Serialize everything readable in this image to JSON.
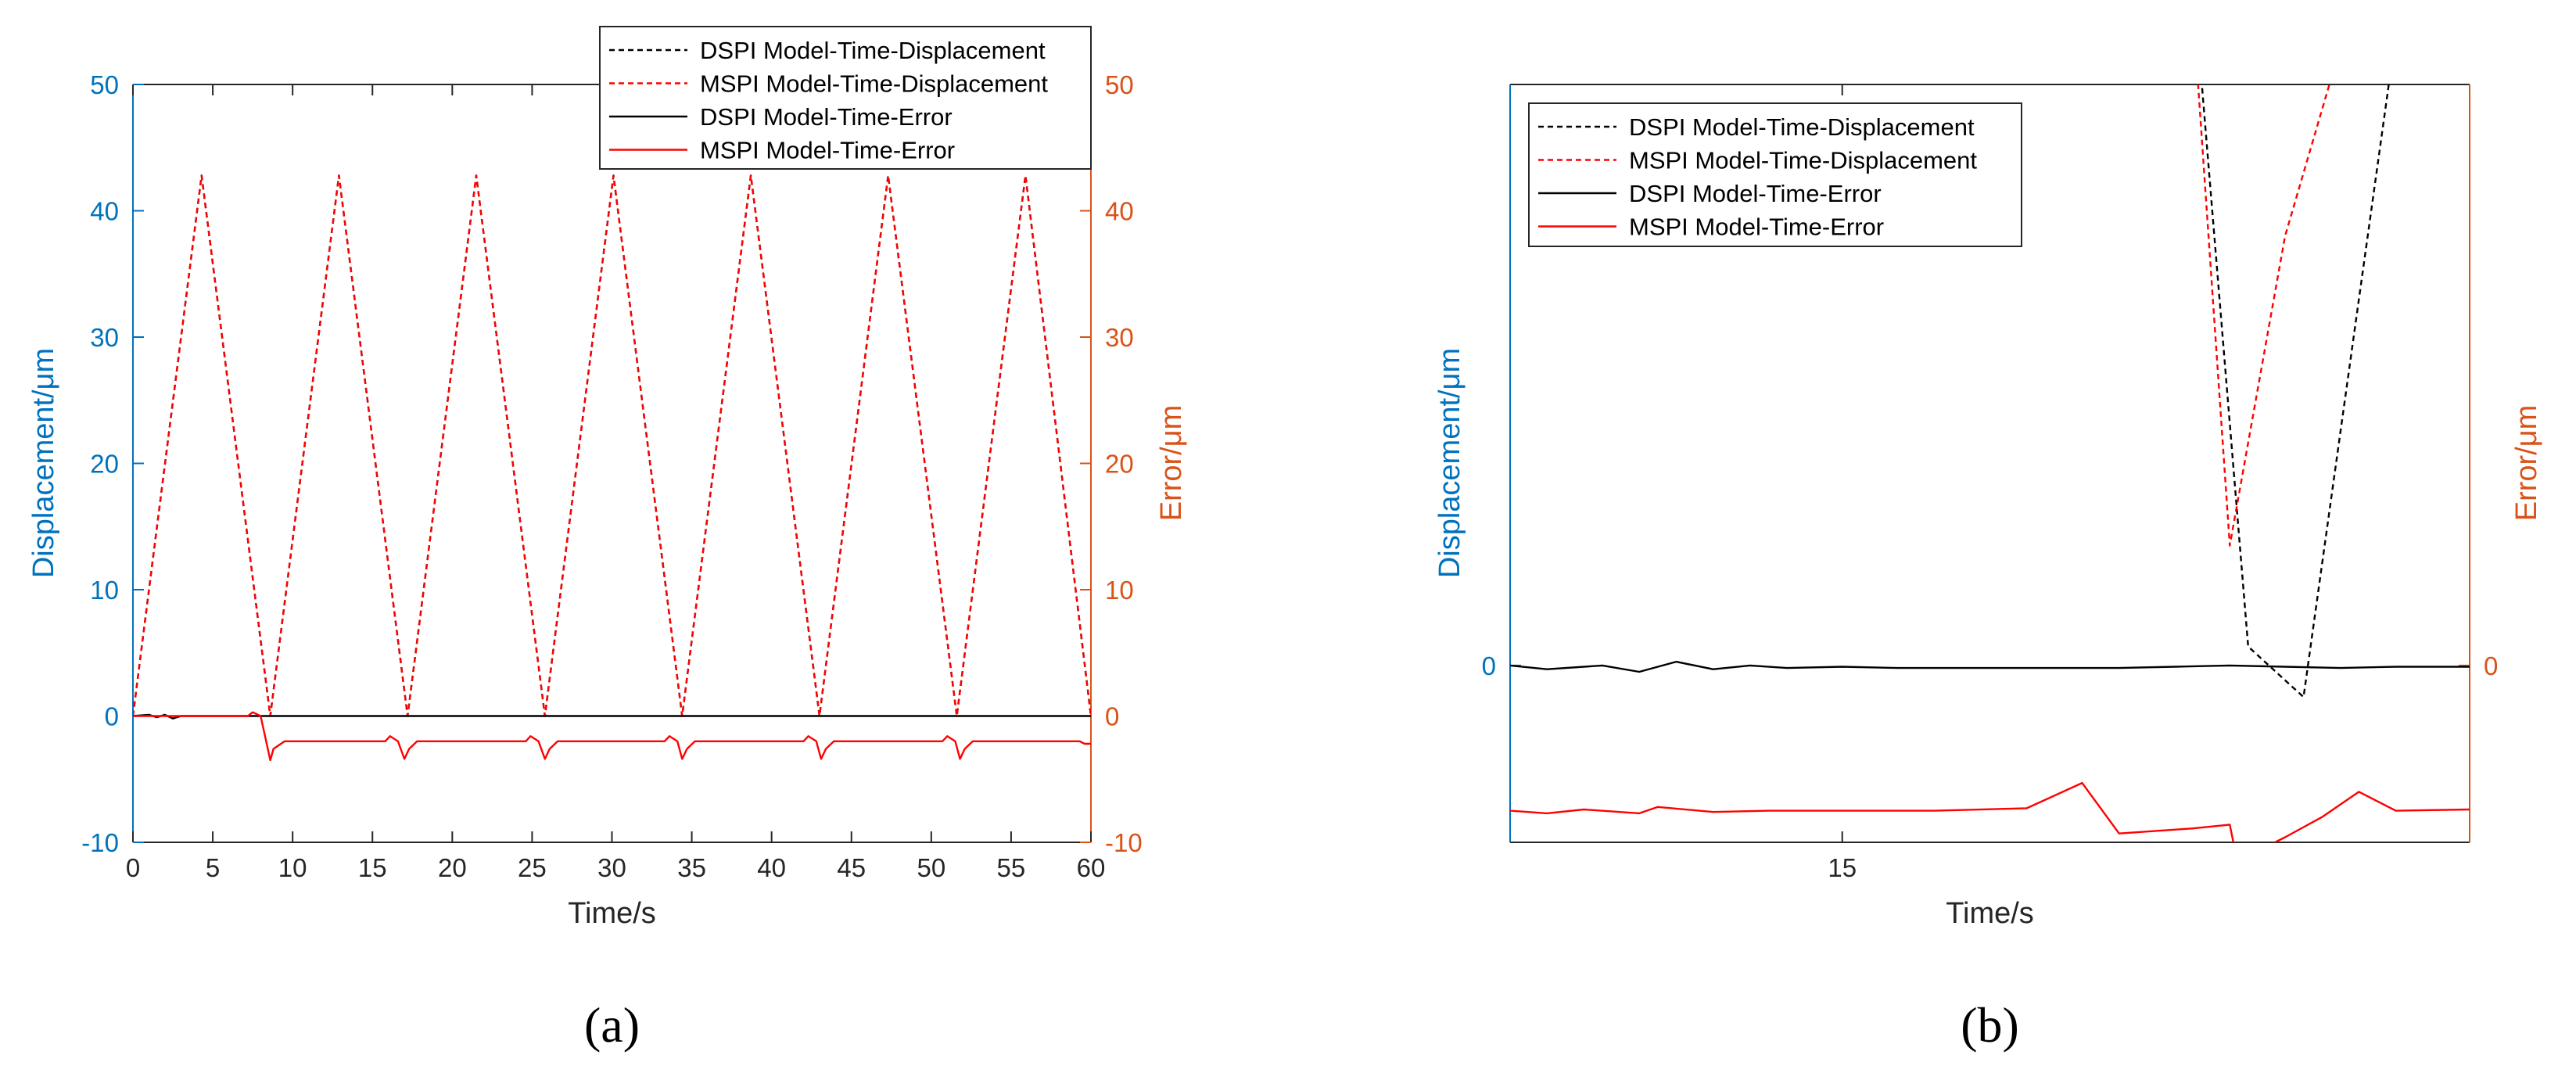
{
  "colors": {
    "left_axis": "#0072BD",
    "right_axis": "#D95319",
    "dspi": "#000000",
    "mspi": "#FF0000"
  },
  "legend_entries": [
    {
      "label": "DSPI Model-Time-Displacement",
      "color": "#000000",
      "dashed": true
    },
    {
      "label": "MSPI Model-Time-Displacement",
      "color": "#FF0000",
      "dashed": true
    },
    {
      "label": "DSPI Model-Time-Error",
      "color": "#000000",
      "dashed": false
    },
    {
      "label": "MSPI Model-Time-Error",
      "color": "#FF0000",
      "dashed": false
    }
  ],
  "chart_data": [
    {
      "type": "line",
      "panel_label": "(a)",
      "xlabel": "Time/s",
      "ylabel_left": "Displacement/μm",
      "ylabel_right": "Error/μm",
      "xlim": [
        0,
        60
      ],
      "ylim_left": [
        -10,
        50
      ],
      "ylim_right": [
        -10,
        50
      ],
      "xticks": [
        0,
        5,
        10,
        15,
        20,
        25,
        30,
        35,
        40,
        45,
        50,
        55,
        60
      ],
      "yticks_left": [
        -10,
        0,
        10,
        20,
        30,
        40,
        50
      ],
      "yticks_right": [
        -10,
        0,
        10,
        20,
        30,
        40,
        50
      ],
      "legend_position": "top-right",
      "series": [
        {
          "name": "DSPI Model-Time-Displacement",
          "style": "dashed",
          "color": "#000000",
          "x": [
            0,
            4.3,
            8.6,
            12.9,
            17.2,
            21.5,
            25.8,
            30.1,
            34.4,
            38.7,
            43.0,
            47.3,
            51.6,
            55.9,
            60
          ],
          "y": [
            0,
            42.8,
            0,
            42.8,
            0,
            42.8,
            0,
            42.8,
            0,
            42.8,
            0,
            42.8,
            0,
            42.8,
            0
          ]
        },
        {
          "name": "MSPI Model-Time-Displacement",
          "style": "dashed",
          "color": "#FF0000",
          "x": [
            0,
            4.3,
            8.6,
            12.9,
            17.2,
            21.5,
            25.8,
            30.1,
            34.4,
            38.7,
            43.0,
            47.3,
            51.6,
            55.9,
            60
          ],
          "y": [
            0,
            42.8,
            0,
            42.8,
            0,
            42.8,
            0,
            42.8,
            0,
            42.8,
            0,
            42.8,
            0,
            42.8,
            0
          ]
        },
        {
          "name": "DSPI Model-Time-Error",
          "style": "solid",
          "color": "#000000",
          "x": [
            0,
            1.0,
            1.5,
            2.0,
            2.5,
            3.0,
            60
          ],
          "y": [
            0,
            0.1,
            -0.1,
            0.1,
            -0.2,
            0,
            0
          ]
        },
        {
          "name": "MSPI Model-Time-Error",
          "style": "solid",
          "color": "#FF0000",
          "x": [
            0,
            7.2,
            7.5,
            8.0,
            8.6,
            8.8,
            9.5,
            15.8,
            16.1,
            16.6,
            17.0,
            17.3,
            17.8,
            24.6,
            24.9,
            25.4,
            25.8,
            26.1,
            26.6,
            33.3,
            33.6,
            34.1,
            34.4,
            34.7,
            35.2,
            42.0,
            42.3,
            42.8,
            43.1,
            43.4,
            43.9,
            50.7,
            51.0,
            51.5,
            51.8,
            52.1,
            52.6,
            59.3,
            59.6,
            60
          ],
          "y": [
            0,
            0,
            0.3,
            0,
            -3.5,
            -2.6,
            -2.0,
            -2.0,
            -1.6,
            -2.0,
            -3.4,
            -2.6,
            -2.0,
            -2.0,
            -1.6,
            -2.0,
            -3.4,
            -2.6,
            -2.0,
            -2.0,
            -1.6,
            -2.0,
            -3.4,
            -2.6,
            -2.0,
            -2.0,
            -1.6,
            -2.0,
            -3.4,
            -2.6,
            -2.0,
            -2.0,
            -1.6,
            -2.0,
            -3.4,
            -2.6,
            -2.0,
            -2.0,
            -2.2,
            -2.2
          ]
        }
      ]
    },
    {
      "type": "line",
      "panel_label": "(b)",
      "xlabel": "Time/s",
      "ylabel_left": "Displacement/μm",
      "ylabel_right": "Error/μm",
      "xlim": [
        13.2,
        18.4
      ],
      "ylim_left": [
        -1.4,
        4.6
      ],
      "ylim_right": [
        -1.4,
        4.6
      ],
      "xticks": [
        15
      ],
      "yticks_left": [
        0
      ],
      "yticks_right": [
        0
      ],
      "legend_position": "top-left",
      "series": [
        {
          "name": "DSPI Model-Time-Displacement",
          "style": "dashed",
          "color": "#000000",
          "x": [
            16.9,
            17.2,
            17.5,
            18.0
          ],
          "y": [
            5.46,
            0.15,
            -0.25,
            5.0
          ]
        },
        {
          "name": "MSPI Model-Time-Displacement",
          "style": "dashed",
          "color": "#FF0000",
          "x": [
            16.9,
            17.1,
            17.4,
            17.8
          ],
          "y": [
            5.2,
            0.95,
            3.4,
            5.4
          ]
        },
        {
          "name": "DSPI Model-Time-Error",
          "style": "solid",
          "color": "#000000",
          "x": [
            13.2,
            13.4,
            13.7,
            13.9,
            14.1,
            14.3,
            14.5,
            14.7,
            15.0,
            15.3,
            15.6,
            15.9,
            16.2,
            16.5,
            16.8,
            17.1,
            17.4,
            17.7,
            18.0,
            18.4
          ],
          "y": [
            0,
            -0.03,
            0,
            -0.05,
            0.03,
            -0.03,
            0,
            -0.02,
            -0.01,
            -0.02,
            -0.02,
            -0.02,
            -0.02,
            -0.02,
            -0.01,
            0,
            -0.01,
            -0.02,
            -0.01,
            -0.01
          ]
        },
        {
          "name": "MSPI Model-Time-Error",
          "style": "solid",
          "color": "#FF0000",
          "x": [
            13.2,
            13.4,
            13.6,
            13.9,
            14.0,
            14.3,
            14.6,
            15.0,
            15.5,
            16.0,
            16.3,
            16.5,
            16.9,
            17.1,
            17.14,
            17.4,
            17.6,
            17.8,
            18.0,
            18.4
          ],
          "y": [
            -1.15,
            -1.17,
            -1.14,
            -1.17,
            -1.12,
            -1.16,
            -1.15,
            -1.15,
            -1.15,
            -1.13,
            -0.93,
            -1.33,
            -1.29,
            -1.26,
            -1.55,
            -1.36,
            -1.2,
            -1.0,
            -1.15,
            -1.14
          ]
        }
      ]
    }
  ]
}
